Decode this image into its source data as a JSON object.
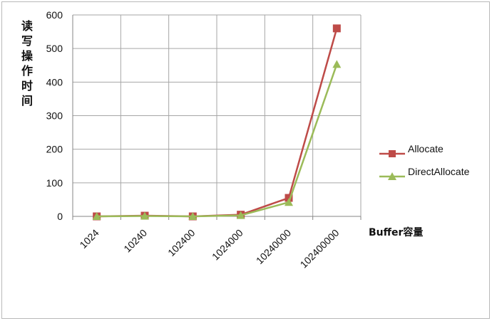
{
  "chart_data": {
    "type": "line",
    "categories": [
      "1024",
      "10240",
      "102400",
      "1024000",
      "10240000",
      "102400000"
    ],
    "series": [
      {
        "name": "Allocate",
        "values": [
          0,
          2,
          0,
          5,
          55,
          560
        ],
        "color": "#be4b48",
        "marker": "square"
      },
      {
        "name": "DirectAllocate",
        "values": [
          0,
          1,
          0,
          3,
          42,
          453
        ],
        "color": "#9bbb59",
        "marker": "triangle"
      }
    ],
    "ylim": [
      0,
      600
    ],
    "yticks": [
      0,
      100,
      200,
      300,
      400,
      500,
      600
    ],
    "ylabel": "读写操作时间",
    "xlabel": "Buffer容量",
    "grid": true,
    "legend": "right"
  }
}
